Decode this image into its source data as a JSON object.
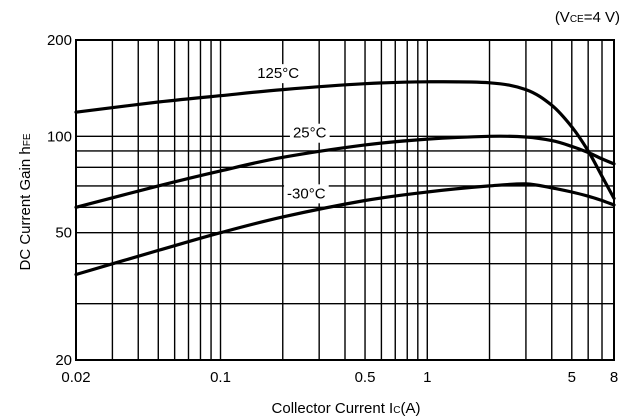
{
  "chart_data": {
    "type": "line",
    "scale": "log-log",
    "grid": true,
    "condition_note": "(V CE =4 V)",
    "condition": {
      "prefix": "(V",
      "sub": "CE",
      "suffix": "=4 V)"
    },
    "xlabel": {
      "prefix": "Collector Current I",
      "sub": "C",
      "suffix": "(A)"
    },
    "ylabel": {
      "prefix": "DC Current Gain h",
      "sub": "FE"
    },
    "xlim": [
      0.02,
      8
    ],
    "ylim": [
      20,
      200
    ],
    "x_tick_labels": [
      {
        "value": 0.02,
        "label": "0.02"
      },
      {
        "value": 0.1,
        "label": "0.1"
      },
      {
        "value": 0.5,
        "label": "0.5"
      },
      {
        "value": 1,
        "label": "1"
      },
      {
        "value": 5,
        "label": "5"
      },
      {
        "value": 8,
        "label": "8"
      }
    ],
    "y_tick_labels": [
      {
        "value": 20,
        "label": "20"
      },
      {
        "value": 50,
        "label": "50"
      },
      {
        "value": 100,
        "label": "100"
      },
      {
        "value": 200,
        "label": "200"
      }
    ],
    "x_gridlines": [
      0.03,
      0.04,
      0.05,
      0.06,
      0.07,
      0.08,
      0.09,
      0.1,
      0.2,
      0.3,
      0.4,
      0.5,
      0.6,
      0.7,
      0.8,
      0.9,
      1,
      2,
      3,
      4,
      5,
      6,
      7
    ],
    "y_gridlines": [
      30,
      40,
      50,
      60,
      70,
      80,
      90,
      100
    ],
    "series": [
      {
        "name": "125°C",
        "label_at": {
          "x": 0.19,
          "y": 152
        },
        "x": [
          0.02,
          0.05,
          0.1,
          0.2,
          0.5,
          1,
          2,
          3,
          4,
          5,
          6,
          7,
          8
        ],
        "values": [
          119,
          128,
          134,
          140,
          146,
          148,
          147,
          140,
          125,
          107,
          90,
          75,
          64
        ]
      },
      {
        "name": "25°C",
        "label_at": {
          "x": 0.27,
          "y": 99
        },
        "x": [
          0.02,
          0.05,
          0.1,
          0.2,
          0.5,
          1,
          2,
          3,
          4,
          5,
          6,
          7,
          8
        ],
        "values": [
          60,
          70,
          78,
          86,
          94,
          98,
          100,
          99.5,
          97,
          93,
          89,
          85,
          82
        ]
      },
      {
        "name": "-30°C",
        "label_at": {
          "x": 0.26,
          "y": 64
        },
        "x": [
          0.02,
          0.05,
          0.1,
          0.2,
          0.5,
          1,
          2,
          3,
          4,
          5,
          6,
          7,
          8
        ],
        "values": [
          37,
          44,
          50,
          56,
          63,
          67,
          70,
          71,
          69,
          67,
          65,
          63,
          61
        ]
      }
    ]
  }
}
